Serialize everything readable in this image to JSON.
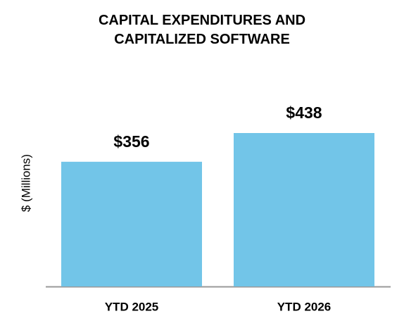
{
  "chart_data": {
    "type": "bar",
    "title": "CAPITAL EXPENDITURES AND CAPITALIZED SOFTWARE",
    "y_label": "$ (Millions)",
    "categories": [
      "YTD 2025",
      "YTD 2026"
    ],
    "values": [
      356,
      438
    ],
    "value_labels": [
      "$356",
      "$438"
    ],
    "color": "#72c5e8"
  }
}
